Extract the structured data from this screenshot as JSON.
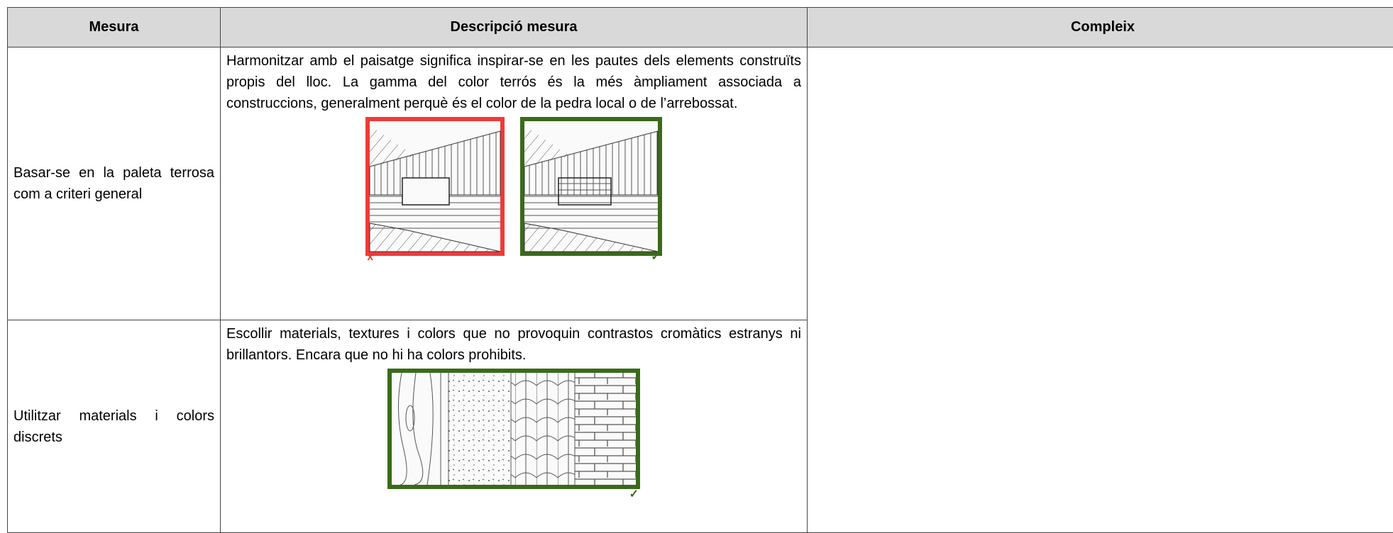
{
  "table": {
    "header": [
      "Mesura",
      "Descripció mesura",
      "Compleix"
    ],
    "rows": [
      {
        "measure": "Basar-se en la paleta terrosa com a criteri general",
        "description": "Harmonitzar amb el paisatge significa inspirar-se en les pautes dels elements construïts propis del lloc. La gamma del color terrós és la més àmpliament associada a construccions, generalment perquè és el color de la pedra local o de l’arrebossat.",
        "marks": [
          "x",
          "✓"
        ]
      },
      {
        "measure": "Utilitzar materials i colors discrets",
        "description": "Escollir materials, textures i colors que no provoquin contrastos cromàtics estranys ni brillantors. Encara que no hi ha colors prohibits.",
        "marks": [
          "✓"
        ]
      }
    ]
  }
}
